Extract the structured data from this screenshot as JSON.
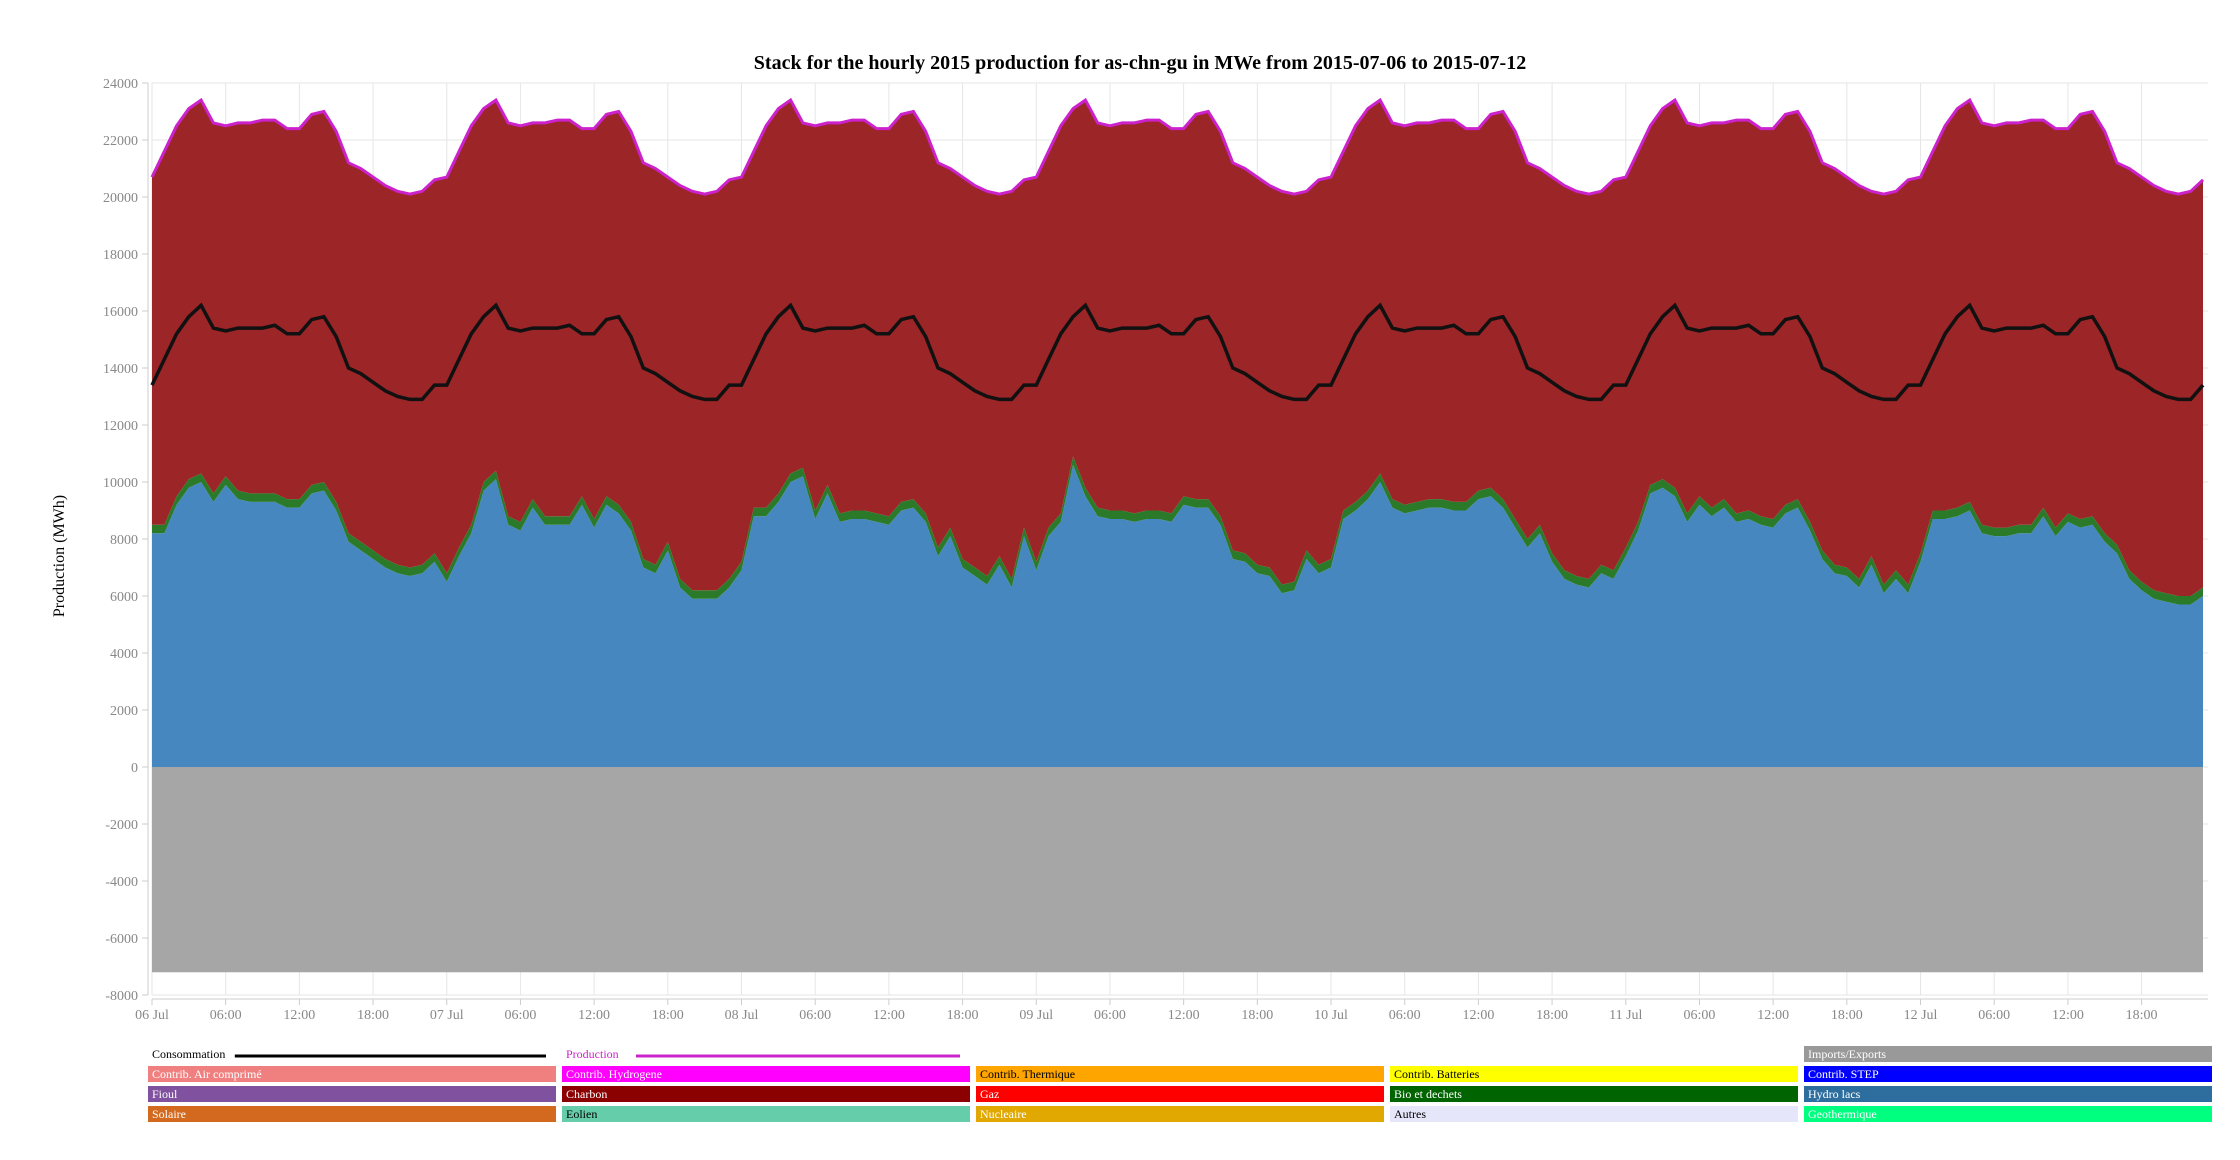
{
  "chart_data": {
    "type": "area",
    "title": "Stack for the hourly 2015 production for as-chn-gu in MWe from 2015-07-06 to 2015-07-12",
    "ylabel": "Production (MWh)",
    "xlabel": "",
    "ylim": [
      -8000,
      24000
    ],
    "yticks": [
      -8000,
      -6000,
      -4000,
      -2000,
      0,
      2000,
      4000,
      6000,
      8000,
      10000,
      12000,
      14000,
      16000,
      18000,
      20000,
      22000,
      24000
    ],
    "xticks": [
      {
        "hour": 0,
        "label": "06 Jul"
      },
      {
        "hour": 6,
        "label": "06:00"
      },
      {
        "hour": 12,
        "label": "12:00"
      },
      {
        "hour": 18,
        "label": "18:00"
      },
      {
        "hour": 24,
        "label": "07 Jul"
      },
      {
        "hour": 30,
        "label": "06:00"
      },
      {
        "hour": 36,
        "label": "12:00"
      },
      {
        "hour": 42,
        "label": "18:00"
      },
      {
        "hour": 48,
        "label": "08 Jul"
      },
      {
        "hour": 54,
        "label": "06:00"
      },
      {
        "hour": 60,
        "label": "12:00"
      },
      {
        "hour": 66,
        "label": "18:00"
      },
      {
        "hour": 72,
        "label": "09 Jul"
      },
      {
        "hour": 78,
        "label": "06:00"
      },
      {
        "hour": 84,
        "label": "12:00"
      },
      {
        "hour": 90,
        "label": "18:00"
      },
      {
        "hour": 96,
        "label": "10 Jul"
      },
      {
        "hour": 102,
        "label": "06:00"
      },
      {
        "hour": 108,
        "label": "12:00"
      },
      {
        "hour": 114,
        "label": "18:00"
      },
      {
        "hour": 120,
        "label": "11 Jul"
      },
      {
        "hour": 126,
        "label": "06:00"
      },
      {
        "hour": 132,
        "label": "12:00"
      },
      {
        "hour": 138,
        "label": "18:00"
      },
      {
        "hour": 144,
        "label": "12 Jul"
      },
      {
        "hour": 150,
        "label": "06:00"
      },
      {
        "hour": 156,
        "label": "12:00"
      },
      {
        "hour": 162,
        "label": "18:00"
      }
    ],
    "grid": true,
    "x_hours_range": [
      0,
      167
    ],
    "imports_exports": -7200,
    "production_profile": [
      20700,
      21600,
      22500,
      23100,
      23400,
      22600,
      22500,
      22600,
      22600,
      22700,
      22700,
      22400,
      22400,
      22900,
      23000,
      22300,
      21200,
      21000,
      20700,
      20400,
      20200,
      20100,
      20200,
      20600
    ],
    "consumption_profile": [
      13400,
      14300,
      15200,
      15800,
      16200,
      15400,
      15300,
      15400,
      15400,
      15400,
      15500,
      15200,
      15200,
      15700,
      15800,
      15100,
      14000,
      13800,
      13500,
      13200,
      13000,
      12900,
      12900,
      13400
    ],
    "hydro_by_day": [
      [
        8200,
        8200,
        9200,
        9800,
        10000,
        9300,
        9900,
        9400,
        9300,
        9300,
        9300,
        9100,
        9100,
        9600,
        9700,
        9000,
        7900,
        7600,
        7300,
        7000,
        6800,
        6700,
        6800,
        7200
      ],
      [
        6500,
        7400,
        8200,
        9700,
        10100,
        8500,
        8300,
        9100,
        8500,
        8500,
        8500,
        9200,
        8400,
        9200,
        8900,
        8300,
        7000,
        6800,
        7600,
        6300,
        5900,
        5900,
        5900,
        6300
      ],
      [
        6900,
        8800,
        8800,
        9300,
        10000,
        10200,
        8700,
        9600,
        8600,
        8700,
        8700,
        8600,
        8500,
        9000,
        9100,
        8600,
        7400,
        8100,
        7000,
        6700,
        6400,
        7100,
        6300,
        8100
      ],
      [
        6900,
        8100,
        8600,
        10600,
        9500,
        8800,
        8700,
        8700,
        8600,
        8700,
        8700,
        8600,
        9200,
        9100,
        9100,
        8500,
        7300,
        7200,
        6800,
        6700,
        6100,
        6200,
        7300,
        6800
      ],
      [
        7000,
        8700,
        9000,
        9400,
        10000,
        9100,
        8900,
        9000,
        9100,
        9100,
        9000,
        9000,
        9400,
        9500,
        9100,
        8400,
        7700,
        8200,
        7200,
        6600,
        6400,
        6300,
        6800,
        6600
      ],
      [
        7400,
        8300,
        9600,
        9800,
        9500,
        8600,
        9200,
        8800,
        9100,
        8600,
        8700,
        8500,
        8400,
        8900,
        9100,
        8300,
        7300,
        6800,
        6700,
        6300,
        7100,
        6100,
        6600,
        6100
      ],
      [
        7200,
        8700,
        8700,
        8800,
        9000,
        8200,
        8100,
        8100,
        8200,
        8200,
        8800,
        8100,
        8600,
        8400,
        8500,
        7900,
        7500,
        6600,
        6200,
        5900,
        5800,
        5700,
        5700,
        6000
      ]
    ],
    "green_band": 300,
    "series": [
      {
        "name": "Imports/Exports",
        "color": "#a6a6a6"
      },
      {
        "name": "Hydro lacs",
        "color": "#4787bf"
      },
      {
        "name": "Bio et dechets",
        "color": "#2a7a2a"
      },
      {
        "name": "Charbon",
        "color": "#9b2527"
      },
      {
        "name": "Production",
        "color": "#cc22cc"
      },
      {
        "name": "Consommation",
        "color": "#111111"
      }
    ]
  },
  "legend": [
    {
      "label": "Consommation",
      "type": "line",
      "color": "#000000",
      "text_color": "#000000",
      "col": 0,
      "row": 0
    },
    {
      "label": "Production",
      "type": "line",
      "color": "#cc22cc",
      "text_color": "#cc22cc",
      "col": 1,
      "row": 0
    },
    {
      "label": "Imports/Exports",
      "type": "box",
      "color": "#999999",
      "text_color": "#ffffff",
      "col": 4,
      "row": 0
    },
    {
      "label": "Contrib. Air comprimé",
      "type": "box",
      "color": "#f08080",
      "text_color": "#ffffff",
      "col": 0,
      "row": 1
    },
    {
      "label": "Contrib. Hydrogene",
      "type": "box",
      "color": "#ff00ff",
      "text_color": "#ffffff",
      "col": 1,
      "row": 1
    },
    {
      "label": "Contrib. Thermique",
      "type": "box",
      "color": "#ffa500",
      "text_color": "#000000",
      "col": 2,
      "row": 1
    },
    {
      "label": "Contrib. Batteries",
      "type": "box",
      "color": "#ffff00",
      "text_color": "#000000",
      "col": 3,
      "row": 1
    },
    {
      "label": "Contrib. STEP",
      "type": "box",
      "color": "#0000ff",
      "text_color": "#ffffff",
      "col": 4,
      "row": 1
    },
    {
      "label": "Fioul",
      "type": "box",
      "color": "#7f519f",
      "text_color": "#ffffff",
      "col": 0,
      "row": 2
    },
    {
      "label": "Charbon",
      "type": "box",
      "color": "#8b0000",
      "text_color": "#ffffff",
      "col": 1,
      "row": 2
    },
    {
      "label": "Gaz",
      "type": "box",
      "color": "#ff0000",
      "text_color": "#ffffff",
      "col": 2,
      "row": 2
    },
    {
      "label": "Bio et dechets",
      "type": "box",
      "color": "#006400",
      "text_color": "#ffffff",
      "col": 3,
      "row": 2
    },
    {
      "label": "Hydro lacs",
      "type": "box",
      "color": "#2e6e9e",
      "text_color": "#ffffff",
      "col": 4,
      "row": 2
    },
    {
      "label": "Solaire",
      "type": "box",
      "color": "#d2691e",
      "text_color": "#ffffff",
      "col": 0,
      "row": 3
    },
    {
      "label": "Eolien",
      "type": "box",
      "color": "#66cdaa",
      "text_color": "#000000",
      "col": 1,
      "row": 3
    },
    {
      "label": "Nucleaire",
      "type": "box",
      "color": "#e0a800",
      "text_color": "#ffffff",
      "col": 2,
      "row": 3
    },
    {
      "label": "Autres",
      "type": "box",
      "color": "#e6e6fa",
      "text_color": "#000000",
      "col": 3,
      "row": 3
    },
    {
      "label": "Geothermique",
      "type": "box",
      "color": "#00ff7f",
      "text_color": "#ffffff",
      "col": 4,
      "row": 3
    }
  ]
}
